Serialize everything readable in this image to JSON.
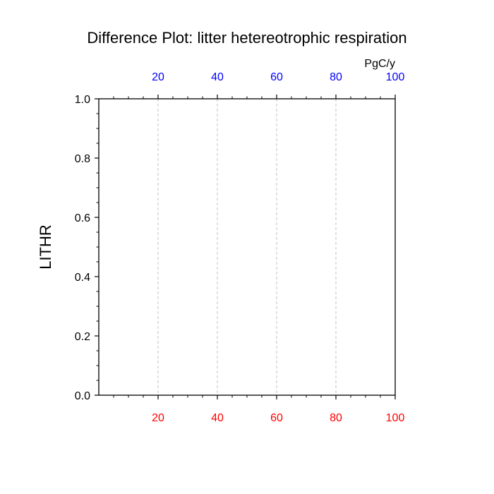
{
  "chart_data": {
    "type": "line",
    "title": "Difference Plot: litter hetereotrophic respiration",
    "xlabel": "",
    "ylabel": "LITHR",
    "top_axis_units": "PgC/y",
    "xlim": [
      0,
      100
    ],
    "ylim": [
      0.0,
      1.0
    ],
    "x_ticks_bottom": [
      20,
      40,
      60,
      80,
      100
    ],
    "x_tick_labels_bottom": [
      "20",
      "40",
      "60",
      "80",
      "100"
    ],
    "x_ticks_top": [
      20,
      40,
      60,
      80,
      100
    ],
    "x_tick_labels_top": [
      "20",
      "40",
      "60",
      "80",
      "100"
    ],
    "y_ticks": [
      0.0,
      0.2,
      0.4,
      0.6,
      0.8,
      1.0
    ],
    "y_tick_labels": [
      "0.0",
      "0.2",
      "0.4",
      "0.6",
      "0.8",
      "1.0"
    ],
    "x_minor_step": 5,
    "y_minor_step": 0.05,
    "vertical_grid": true,
    "grid_style": "dashed",
    "series": [],
    "colors": {
      "bottom_tick_labels": "#ff0000",
      "top_tick_labels": "#0000ff",
      "grid": "#bbbbbb",
      "frame": "#000000"
    }
  }
}
